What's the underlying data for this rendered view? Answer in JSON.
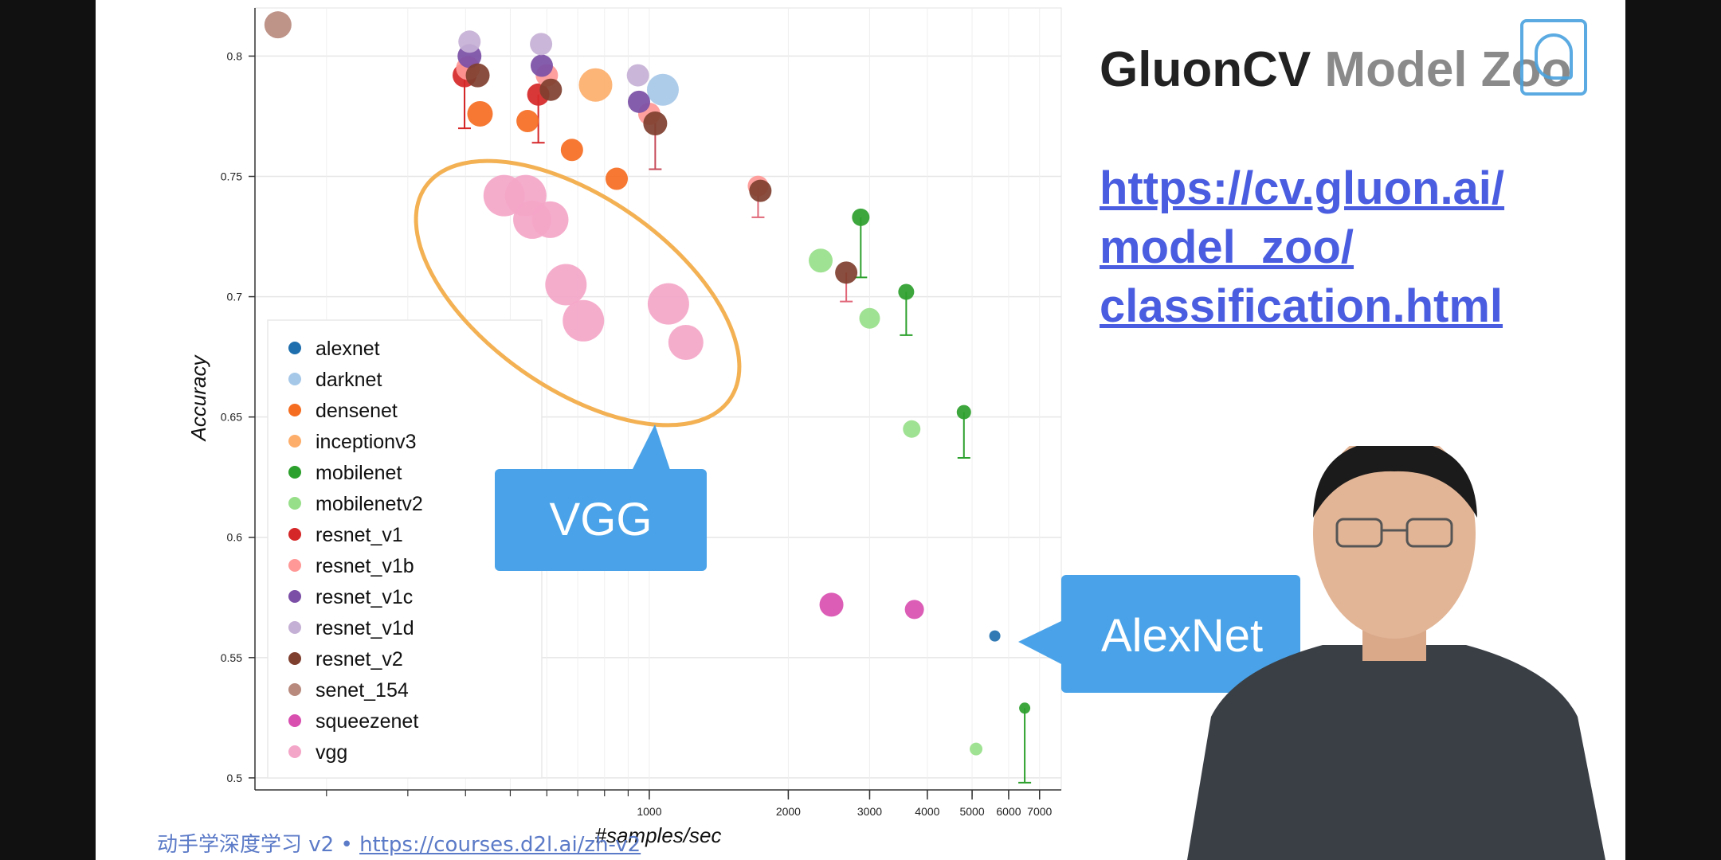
{
  "slide": {
    "title_part1": "GluonCV ",
    "title_part2": "Model Zoo",
    "url_lines": [
      "https://cv.gluon.ai/",
      "model_zoo/",
      "classification.html"
    ],
    "footer_text": "动手学深度学习 v2 • ",
    "footer_link": "https://courses.d2l.ai/zh-v2"
  },
  "callouts": {
    "vgg": "VGG",
    "alexnet": "AlexNet"
  },
  "chart_data": {
    "type": "scatter",
    "xlabel": "#samples/sec",
    "ylabel": "Accuracy",
    "xscale": "log",
    "xlim": [
      140,
      7800
    ],
    "ylim": [
      0.495,
      0.82
    ],
    "xticks": [
      1000,
      2000,
      3000,
      4000,
      5000,
      6000,
      7000
    ],
    "yticks": [
      0.5,
      0.55,
      0.6,
      0.65,
      0.7,
      0.75,
      0.8
    ],
    "grid": true,
    "legend_position": "bottom-left",
    "series": [
      {
        "name": "alexnet",
        "color": "#1f6fae",
        "points": [
          {
            "x": 5600,
            "y": 0.559,
            "r": 7
          }
        ]
      },
      {
        "name": "darknet",
        "color": "#a6c8e8",
        "points": [
          {
            "x": 1070,
            "y": 0.786,
            "r": 20
          }
        ]
      },
      {
        "name": "densenet",
        "color": "#f56d21",
        "points": [
          {
            "x": 430,
            "y": 0.776,
            "r": 16
          },
          {
            "x": 545,
            "y": 0.773,
            "r": 14
          },
          {
            "x": 680,
            "y": 0.761,
            "r": 14
          },
          {
            "x": 850,
            "y": 0.749,
            "r": 14
          }
        ]
      },
      {
        "name": "inceptionv3",
        "color": "#fdae6b",
        "points": [
          {
            "x": 765,
            "y": 0.788,
            "r": 21
          }
        ]
      },
      {
        "name": "mobilenet",
        "color": "#2ca02c",
        "points": [
          {
            "x": 2870,
            "y": 0.733,
            "r": 11
          },
          {
            "x": 3600,
            "y": 0.702,
            "r": 10
          },
          {
            "x": 4800,
            "y": 0.652,
            "r": 9
          },
          {
            "x": 6500,
            "y": 0.529,
            "r": 7
          }
        ]
      },
      {
        "name": "mobilenetv2",
        "color": "#98df8a",
        "points": [
          {
            "x": 2350,
            "y": 0.715,
            "r": 15
          },
          {
            "x": 3000,
            "y": 0.691,
            "r": 13
          },
          {
            "x": 3700,
            "y": 0.645,
            "r": 11
          },
          {
            "x": 5100,
            "y": 0.512,
            "r": 8
          }
        ]
      },
      {
        "name": "resnet_v1",
        "color": "#d62728",
        "points": [
          {
            "x": 398,
            "y": 0.792,
            "r": 15
          },
          {
            "x": 575,
            "y": 0.784,
            "r": 14
          }
        ]
      },
      {
        "name": "resnet_v1b",
        "color": "#ff9896",
        "points": [
          {
            "x": 405,
            "y": 0.795,
            "r": 15
          },
          {
            "x": 600,
            "y": 0.792,
            "r": 14
          },
          {
            "x": 1000,
            "y": 0.776,
            "r": 14
          },
          {
            "x": 1720,
            "y": 0.746,
            "r": 13
          }
        ]
      },
      {
        "name": "resnet_v1c",
        "color": "#7b4fa6",
        "points": [
          {
            "x": 408,
            "y": 0.8,
            "r": 15
          },
          {
            "x": 585,
            "y": 0.796,
            "r": 14
          },
          {
            "x": 950,
            "y": 0.781,
            "r": 14
          }
        ]
      },
      {
        "name": "resnet_v1d",
        "color": "#c5b0d5",
        "points": [
          {
            "x": 408,
            "y": 0.806,
            "r": 14
          },
          {
            "x": 583,
            "y": 0.805,
            "r": 14
          },
          {
            "x": 945,
            "y": 0.792,
            "r": 14
          }
        ]
      },
      {
        "name": "resnet_v2",
        "color": "#7f3f2f",
        "points": [
          {
            "x": 425,
            "y": 0.792,
            "r": 15
          },
          {
            "x": 612,
            "y": 0.786,
            "r": 14
          },
          {
            "x": 1030,
            "y": 0.772,
            "r": 15
          },
          {
            "x": 1740,
            "y": 0.744,
            "r": 14
          },
          {
            "x": 2670,
            "y": 0.71,
            "r": 14
          }
        ]
      },
      {
        "name": "senet_154",
        "color": "#b88a7e",
        "points": [
          {
            "x": 157,
            "y": 0.813,
            "r": 17
          }
        ]
      },
      {
        "name": "squeezenet",
        "color": "#d84fb0",
        "points": [
          {
            "x": 2480,
            "y": 0.572,
            "r": 15
          },
          {
            "x": 3750,
            "y": 0.57,
            "r": 12
          }
        ]
      },
      {
        "name": "vgg",
        "color": "#f4a6c8",
        "points": [
          {
            "x": 485,
            "y": 0.742,
            "r": 26
          },
          {
            "x": 540,
            "y": 0.742,
            "r": 26
          },
          {
            "x": 558,
            "y": 0.732,
            "r": 24
          },
          {
            "x": 610,
            "y": 0.732,
            "r": 23
          },
          {
            "x": 660,
            "y": 0.705,
            "r": 26
          },
          {
            "x": 720,
            "y": 0.69,
            "r": 26
          },
          {
            "x": 1100,
            "y": 0.697,
            "r": 26
          },
          {
            "x": 1200,
            "y": 0.681,
            "r": 22
          }
        ]
      }
    ]
  }
}
